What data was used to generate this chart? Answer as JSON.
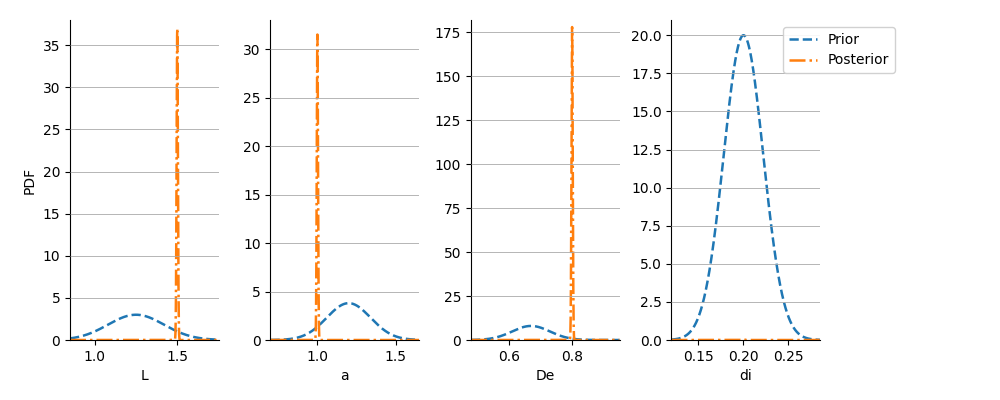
{
  "subplots": [
    {
      "param": "L",
      "prior_mean": 1.25,
      "prior_std": 0.17,
      "prior_peak": 3.0,
      "posterior_mean": 1.5,
      "posterior_std": 0.004,
      "posterior_peak": 37.0,
      "xlim": [
        0.85,
        1.75
      ],
      "xticks": [
        1.0,
        1.5
      ],
      "yticks": [
        0,
        5,
        10,
        15,
        20,
        25,
        30,
        35
      ],
      "ylim_max": 38
    },
    {
      "param": "a",
      "prior_mean": 1.2,
      "prior_std": 0.14,
      "prior_peak": 3.8,
      "posterior_mean": 1.0,
      "posterior_std": 0.004,
      "posterior_peak": 31.5,
      "xlim": [
        0.7,
        1.65
      ],
      "xticks": [
        1.0,
        1.5
      ],
      "yticks": [
        0,
        5,
        10,
        15,
        20,
        25,
        30
      ],
      "ylim_max": 33
    },
    {
      "param": "De",
      "prior_mean": 0.67,
      "prior_std": 0.06,
      "prior_peak": 8.0,
      "posterior_mean": 0.8,
      "posterior_std": 0.002,
      "posterior_peak": 178.0,
      "xlim": [
        0.48,
        0.95
      ],
      "xticks": [
        0.6,
        0.8
      ],
      "yticks": [
        0,
        25,
        50,
        75,
        100,
        125,
        150,
        175
      ],
      "ylim_max": 182
    },
    {
      "param": "di",
      "prior_mean": 0.2,
      "prior_std": 0.022,
      "prior_peak": 20.0,
      "posterior_mean": 0.2,
      "posterior_std": 0.001,
      "posterior_peak": 0.05,
      "xlim": [
        0.12,
        0.285
      ],
      "xticks": [
        0.15,
        0.2,
        0.25
      ],
      "yticks": [
        0.0,
        2.5,
        5.0,
        7.5,
        10.0,
        12.5,
        15.0,
        17.5,
        20.0
      ],
      "ylim_max": 21
    }
  ],
  "prior_color": "#1f77b4",
  "posterior_color": "#ff7f0e",
  "prior_linestyle": "--",
  "posterior_linestyle": "-.",
  "prior_linewidth": 1.8,
  "posterior_linewidth": 1.8,
  "ylabel": "PDF",
  "legend_labels": [
    "Prior",
    "Posterior"
  ],
  "figsize": [
    10,
    4
  ],
  "dpi": 100,
  "grid_color": "#aaaaaa",
  "grid_linewidth": 0.6,
  "wspace": 0.35
}
